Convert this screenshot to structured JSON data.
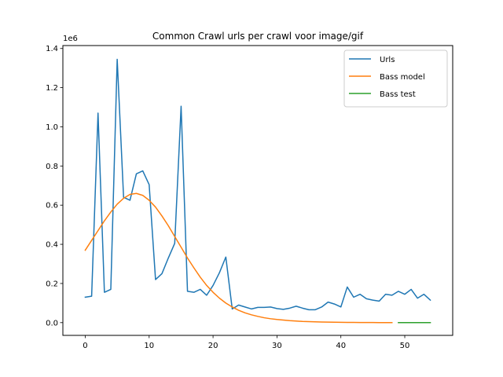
{
  "chart_data": {
    "type": "line",
    "title": "Common Crawl urls per crawl voor image/gif",
    "xlabel": "",
    "ylabel": "",
    "y_offset_label": "1e6",
    "xlim": [
      -3.5,
      57.5
    ],
    "ylim": [
      -0.065,
      1.415
    ],
    "x_ticks": [
      0,
      10,
      20,
      30,
      40,
      50
    ],
    "y_ticks": [
      0.0,
      0.2,
      0.4,
      0.6,
      0.8,
      1.0,
      1.2,
      1.4
    ],
    "y_tick_labels": [
      "0.0",
      "0.2",
      "0.4",
      "0.6",
      "0.8",
      "1.0",
      "1.2",
      "1.4"
    ],
    "grid": false,
    "legend_position": "top-right",
    "series": [
      {
        "name": "Urls",
        "color": "#1f77b4",
        "x": [
          0,
          1,
          2,
          3,
          4,
          5,
          6,
          7,
          8,
          9,
          10,
          11,
          12,
          13,
          14,
          15,
          16,
          17,
          18,
          19,
          20,
          21,
          22,
          23,
          24,
          25,
          26,
          27,
          28,
          29,
          30,
          31,
          32,
          33,
          34,
          35,
          36,
          37,
          38,
          39,
          40,
          41,
          42,
          43,
          44,
          45,
          46,
          47,
          48,
          49,
          50,
          51,
          52,
          53,
          54
        ],
        "y": [
          0.13,
          0.135,
          1.07,
          0.155,
          0.17,
          1.345,
          0.64,
          0.625,
          0.76,
          0.775,
          0.705,
          0.22,
          0.25,
          0.33,
          0.405,
          1.105,
          0.16,
          0.155,
          0.17,
          0.14,
          0.19,
          0.255,
          0.335,
          0.07,
          0.09,
          0.08,
          0.07,
          0.078,
          0.078,
          0.08,
          0.072,
          0.068,
          0.074,
          0.084,
          0.074,
          0.066,
          0.066,
          0.08,
          0.105,
          0.095,
          0.08,
          0.182,
          0.13,
          0.145,
          0.122,
          0.115,
          0.11,
          0.145,
          0.14,
          0.16,
          0.145,
          0.17,
          0.125,
          0.145,
          0.115
        ]
      },
      {
        "name": "Bass model",
        "color": "#ff7f0e",
        "x": [
          0,
          1,
          2,
          3,
          4,
          5,
          6,
          7,
          8,
          9,
          10,
          11,
          12,
          13,
          14,
          15,
          16,
          17,
          18,
          19,
          20,
          21,
          22,
          23,
          24,
          25,
          26,
          27,
          28,
          29,
          30,
          31,
          32,
          33,
          34,
          35,
          36,
          37,
          38,
          39,
          40,
          41,
          42,
          43,
          44,
          45,
          46,
          47,
          48
        ],
        "y": [
          0.37,
          0.42,
          0.47,
          0.52,
          0.565,
          0.605,
          0.635,
          0.655,
          0.66,
          0.65,
          0.625,
          0.59,
          0.545,
          0.495,
          0.44,
          0.385,
          0.33,
          0.28,
          0.232,
          0.19,
          0.155,
          0.125,
          0.1,
          0.08,
          0.063,
          0.05,
          0.04,
          0.032,
          0.025,
          0.02,
          0.016,
          0.013,
          0.01,
          0.008,
          0.006,
          0.005,
          0.004,
          0.003,
          0.0025,
          0.002,
          0.0015,
          0.0012,
          0.001,
          0.0008,
          0.0006,
          0.0005,
          0.0004,
          0.0003,
          0.0002
        ]
      },
      {
        "name": "Bass test",
        "color": "#2ca02c",
        "x": [
          49,
          50,
          51,
          52,
          53,
          54
        ],
        "y": [
          0.0001,
          0.0001,
          0.0001,
          0.0001,
          0.0001,
          0.0001
        ]
      }
    ]
  }
}
